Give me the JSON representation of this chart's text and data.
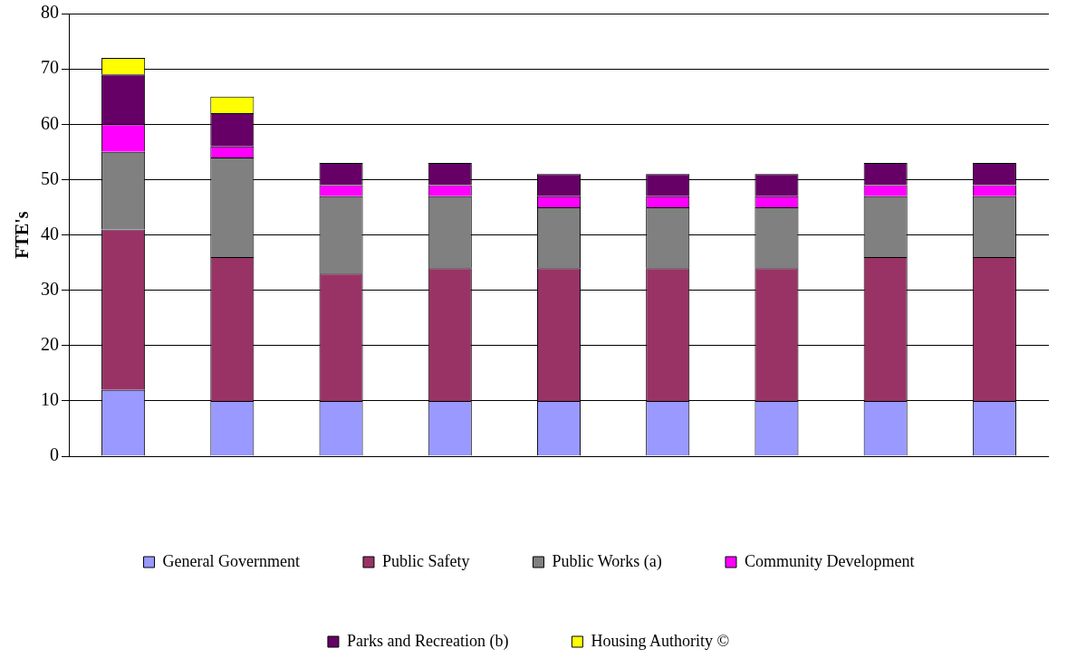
{
  "chart_data": {
    "type": "bar",
    "ylabel": "FTE's",
    "stacked": true,
    "categories": [
      null,
      null,
      null,
      null,
      null,
      null,
      null,
      null,
      null
    ],
    "series": [
      {
        "name": "General Government",
        "color": "#9999ff",
        "values": [
          12,
          10,
          10,
          10,
          10,
          10,
          10,
          10,
          10
        ]
      },
      {
        "name": "Public Safety",
        "color": "#993366",
        "values": [
          29,
          26,
          23,
          24,
          24,
          24,
          24,
          26,
          26
        ]
      },
      {
        "name": "Public Works (a)",
        "color": "#808080",
        "values": [
          14,
          18,
          14,
          13,
          11,
          11,
          11,
          11,
          11
        ]
      },
      {
        "name": "Community Development",
        "color": "#ff00ff",
        "values": [
          5,
          2,
          2,
          2,
          2,
          2,
          2,
          2,
          2
        ]
      },
      {
        "name": "Parks and Recreation (b)",
        "color": "#660066",
        "values": [
          9,
          6,
          4,
          4,
          4,
          4,
          4,
          4,
          4
        ]
      },
      {
        "name": "Housing Authority ©",
        "color": "#ffff00",
        "values": [
          3,
          3,
          0,
          0,
          0,
          0,
          0,
          0,
          0
        ]
      }
    ],
    "ylim": [
      0,
      80
    ],
    "yticks": [
      0,
      10,
      20,
      30,
      40,
      50,
      60,
      70,
      80
    ],
    "grid": "y",
    "legend": "bottom"
  }
}
